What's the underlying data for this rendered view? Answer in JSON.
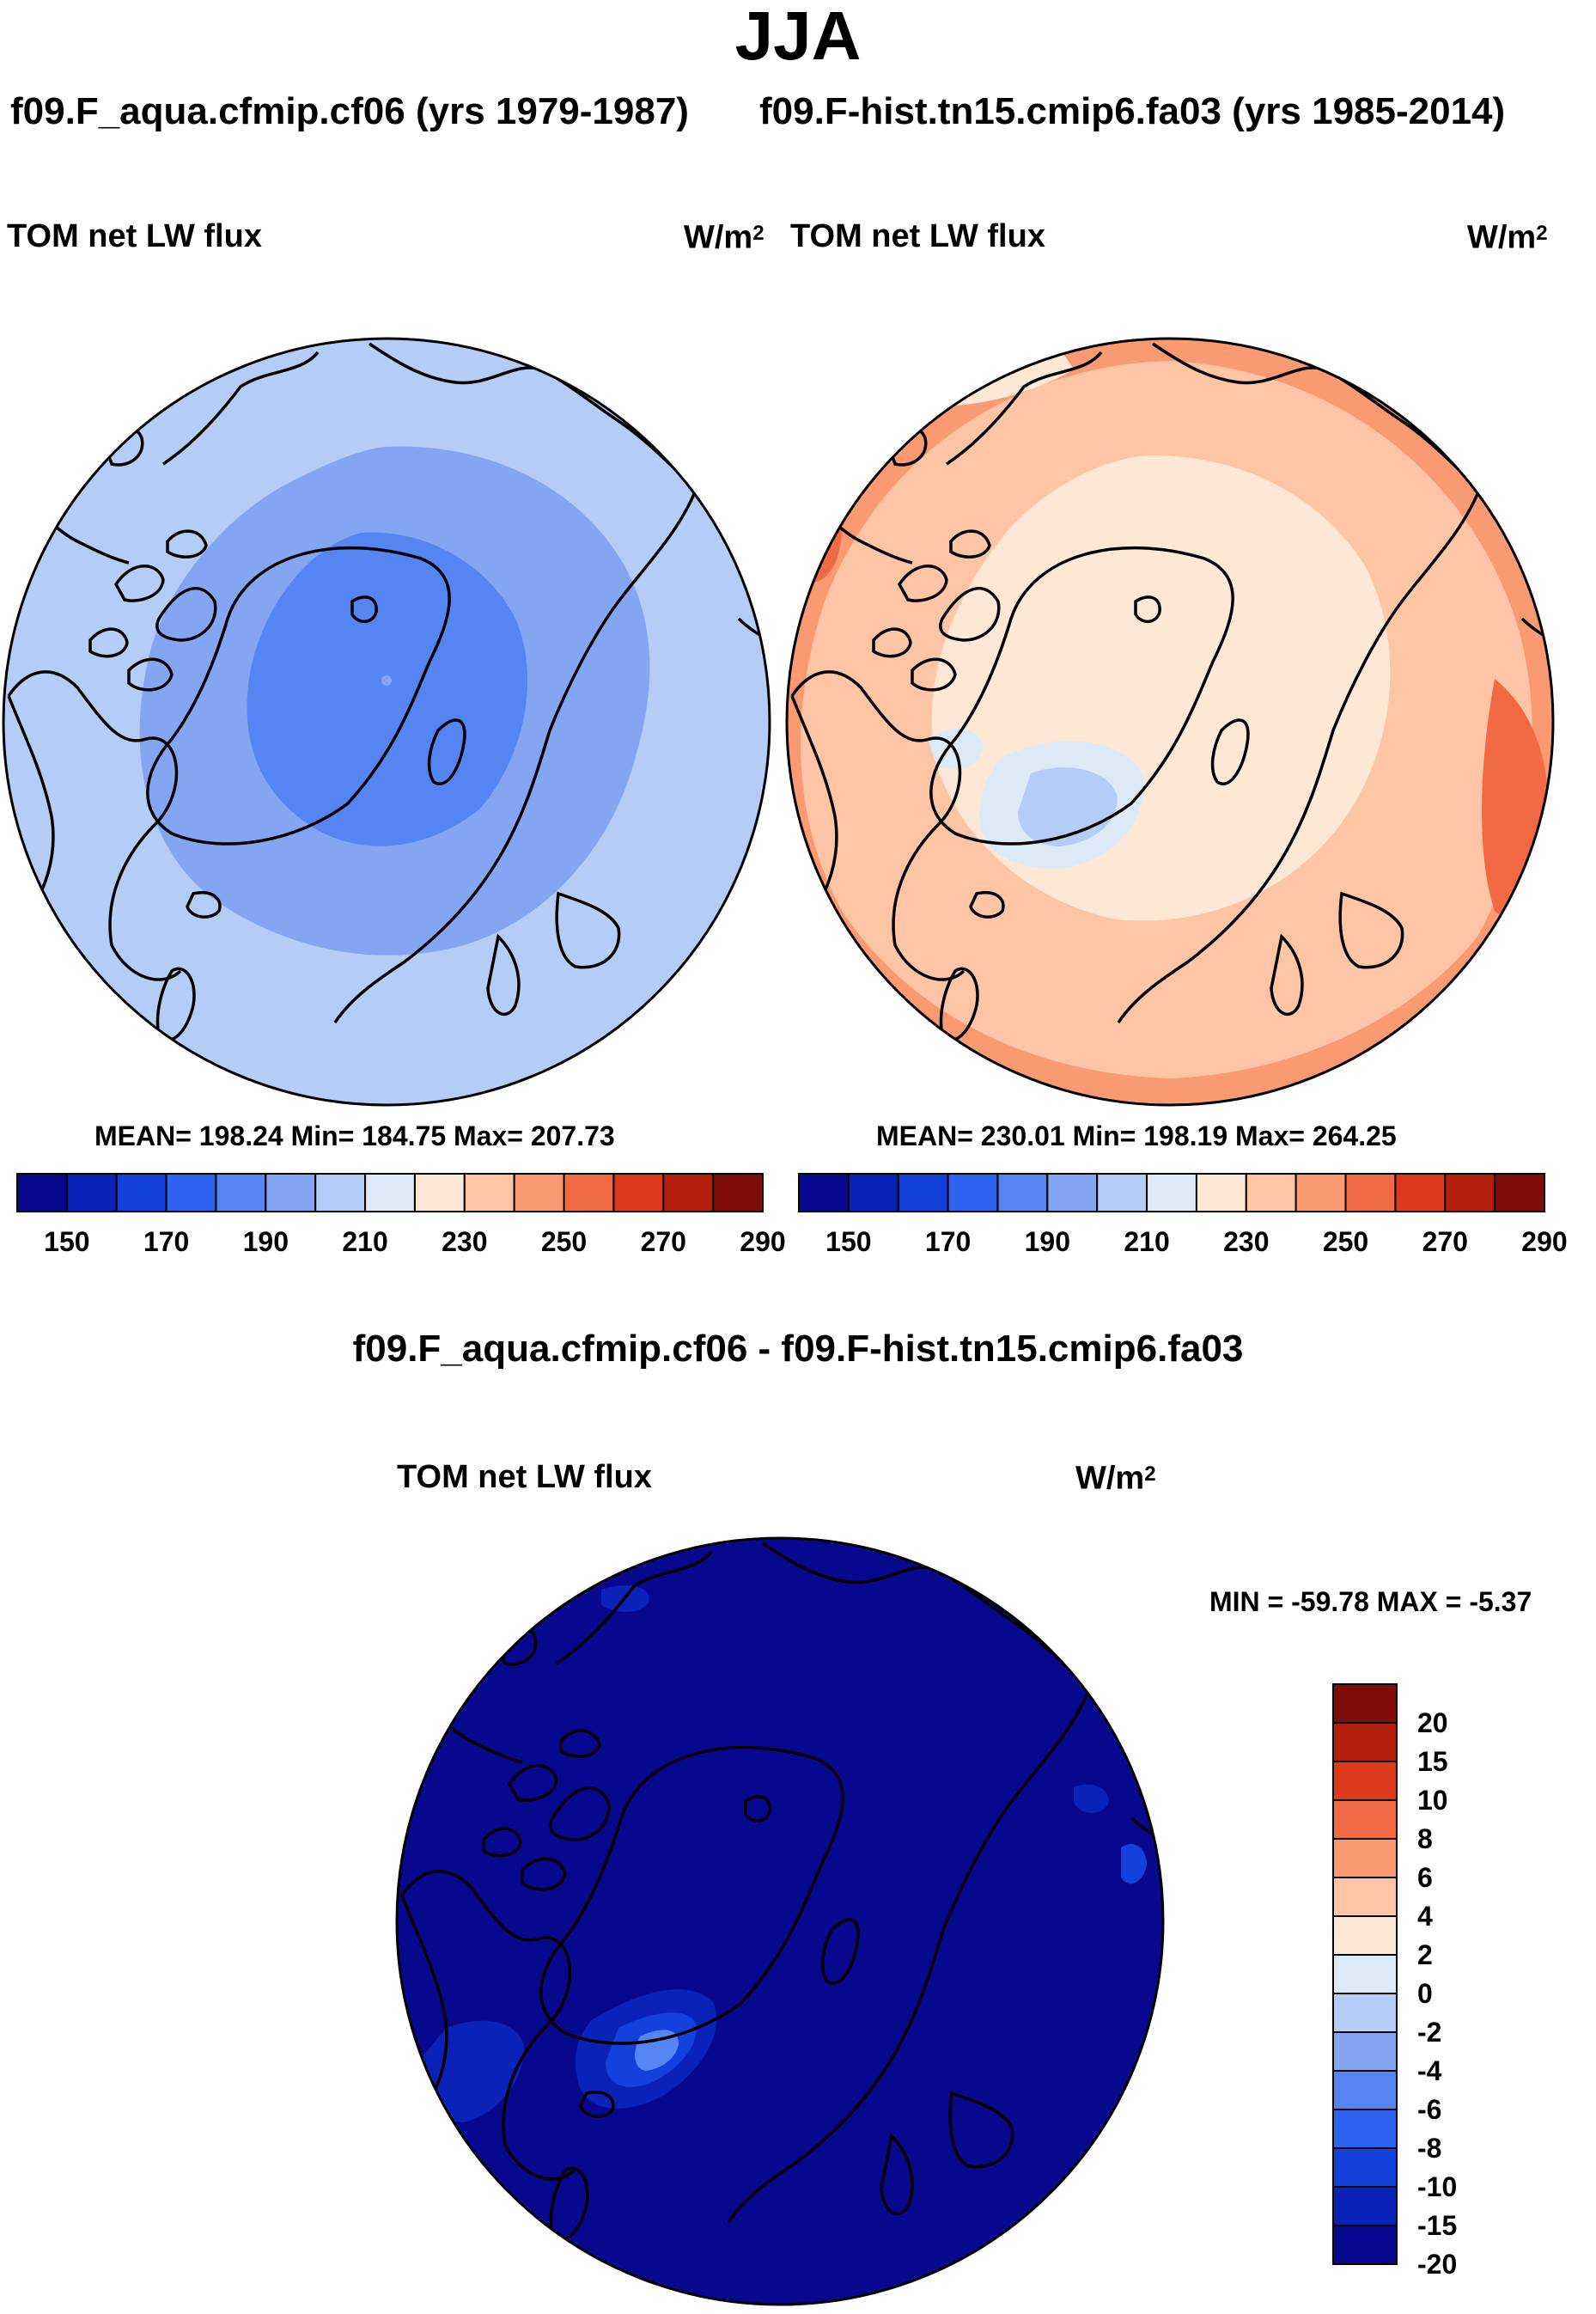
{
  "season": "JJA",
  "panels": {
    "left": {
      "case": "f09.F_aqua.cfmip.cf06 (yrs 1979-1987)",
      "variable": "TOM net LW flux",
      "units_base": "W/m",
      "units_exp": "2",
      "stats": "MEAN= 198.24  Min= 184.75  Max= 207.73",
      "mean": 198.24,
      "min": 184.75,
      "max": 207.73
    },
    "right": {
      "case": "f09.F-hist.tn15.cmip6.fa03 (yrs 1985-2014)",
      "variable": "TOM net LW flux",
      "units_base": "W/m",
      "units_exp": "2",
      "stats": "MEAN= 230.01  Min= 198.19  Max= 264.25",
      "mean": 230.01,
      "min": 198.19,
      "max": 264.25
    },
    "diff": {
      "title": "f09.F_aqua.cfmip.cf06 - f09.F-hist.tn15.cmip6.fa03",
      "variable": "TOM net LW flux",
      "units_base": "W/m",
      "units_exp": "2",
      "minmax": "MIN = -59.78 MAX =  -5.37",
      "min": -59.78,
      "max": -5.37
    }
  },
  "abs_colorbar": {
    "colors": [
      "#08088f",
      "#0a22b8",
      "#1440dc",
      "#2d63f0",
      "#5585f2",
      "#84a6f2",
      "#b4ccf6",
      "#dceaf8",
      "#fde8d6",
      "#fdc5a5",
      "#f99a72",
      "#f26a43",
      "#dc3a1b",
      "#b31f0c",
      "#7f0e0a"
    ],
    "tick_labels": [
      "150",
      "170",
      "190",
      "210",
      "230",
      "250",
      "270",
      "290"
    ]
  },
  "diff_colorbar": {
    "colors": [
      "#7f0e0a",
      "#b31f0c",
      "#dc3a1b",
      "#f26a43",
      "#f99a72",
      "#fdc5a5",
      "#fde8d6",
      "#dceaf8",
      "#b4ccf6",
      "#84a6f2",
      "#5585f2",
      "#2d63f0",
      "#1440dc",
      "#0a22b8",
      "#08088f"
    ],
    "tick_labels": [
      "20",
      "15",
      "10",
      "8",
      "6",
      "4",
      "2",
      "0",
      "-2",
      "-4",
      "-6",
      "-8",
      "-10",
      "-15",
      "-20"
    ]
  },
  "chart_data": [
    {
      "type": "heatmap",
      "projection": "north-polar-stereographic",
      "title": "f09.F_aqua.cfmip.cf06 (yrs 1979-1987)",
      "variable": "TOM net LW flux",
      "units": "W/m2",
      "levels": [
        150,
        160,
        170,
        180,
        190,
        200,
        210,
        220,
        230,
        240,
        250,
        260,
        270,
        280,
        290
      ],
      "mean": 198.24,
      "min": 184.75,
      "max": 207.73
    },
    {
      "type": "heatmap",
      "projection": "north-polar-stereographic",
      "title": "f09.F-hist.tn15.cmip6.fa03 (yrs 1985-2014)",
      "variable": "TOM net LW flux",
      "units": "W/m2",
      "levels": [
        150,
        160,
        170,
        180,
        190,
        200,
        210,
        220,
        230,
        240,
        250,
        260,
        270,
        280,
        290
      ],
      "mean": 230.01,
      "min": 198.19,
      "max": 264.25
    },
    {
      "type": "heatmap",
      "projection": "north-polar-stereographic",
      "title": "f09.F_aqua.cfmip.cf06 - f09.F-hist.tn15.cmip6.fa03",
      "variable": "TOM net LW flux",
      "units": "W/m2",
      "levels": [
        -20,
        -15,
        -10,
        -8,
        -6,
        -4,
        -2,
        0,
        2,
        4,
        6,
        8,
        10,
        15,
        20
      ],
      "min": -59.78,
      "max": -5.37
    }
  ]
}
